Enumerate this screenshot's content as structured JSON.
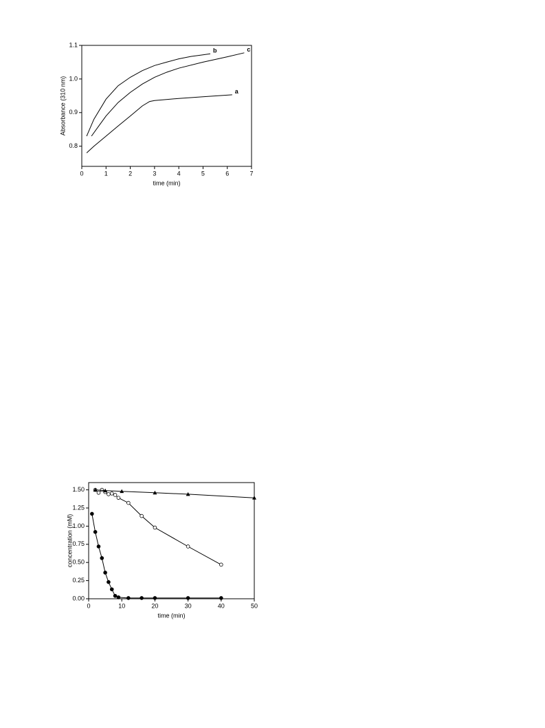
{
  "chart_data": [
    {
      "type": "line",
      "ylabel": "Absorbance (310 nm)",
      "xlabel": "time (min)",
      "xlim": [
        0,
        7
      ],
      "xticks": [
        0,
        1,
        2,
        3,
        4,
        5,
        6,
        7
      ],
      "ylim": [
        0.74,
        1.1
      ],
      "yticks": [
        0.8,
        0.9,
        {
          "value": 1.0,
          "label": "1.0"
        },
        1.1
      ],
      "series": [
        {
          "name": "a",
          "color": "#000000",
          "x": [
            0.2,
            0.5,
            1,
            1.5,
            2,
            2.5,
            2.8,
            3,
            4,
            5,
            6.2
          ],
          "values": [
            0.78,
            0.8,
            0.83,
            0.86,
            0.89,
            0.92,
            0.933,
            0.936,
            0.942,
            0.947,
            0.953
          ]
        },
        {
          "name": "b",
          "color": "#000000",
          "x": [
            0.2,
            0.5,
            1,
            1.5,
            2,
            2.5,
            3,
            3.5,
            4,
            4.5,
            5,
            5.3
          ],
          "values": [
            0.83,
            0.88,
            0.94,
            0.98,
            1.005,
            1.025,
            1.04,
            1.05,
            1.06,
            1.067,
            1.072,
            1.075
          ]
        },
        {
          "name": "c",
          "color": "#000000",
          "x": [
            0.4,
            0.7,
            1,
            1.5,
            2,
            2.5,
            3,
            3.5,
            4,
            5,
            6,
            6.7
          ],
          "values": [
            0.83,
            0.86,
            0.89,
            0.93,
            0.96,
            0.985,
            1.005,
            1.02,
            1.032,
            1.05,
            1.066,
            1.078
          ]
        }
      ]
    },
    {
      "type": "line",
      "ylabel": "concentration (mM)",
      "xlabel": "time (min)",
      "xlim": [
        0,
        50
      ],
      "xticks": [
        0,
        10,
        20,
        30,
        40,
        50
      ],
      "ylim": [
        0,
        1.6
      ],
      "yticks": [
        {
          "value": 0,
          "label": "0.00"
        },
        {
          "value": 0.25,
          "label": "0.25"
        },
        {
          "value": 0.5,
          "label": "0.50"
        },
        {
          "value": 0.75,
          "label": "0.75"
        },
        {
          "value": 1.0,
          "label": "1.00"
        },
        {
          "value": 1.25,
          "label": "1.25"
        },
        {
          "value": 1.5,
          "label": "1.50"
        }
      ],
      "series": [
        {
          "marker": "filled-circle",
          "color": "#000000",
          "x": [
            1,
            2,
            3,
            4,
            5,
            6,
            7,
            8,
            9,
            12,
            16,
            20,
            30,
            40
          ],
          "values": [
            1.17,
            0.92,
            0.72,
            0.56,
            0.36,
            0.23,
            0.13,
            0.04,
            0.02,
            0.01,
            0.01,
            0.01,
            0.01,
            0.01
          ]
        },
        {
          "marker": "open-circle",
          "color": "#000000",
          "x": [
            2,
            3,
            4,
            5,
            6,
            7,
            8,
            9,
            12,
            16,
            20,
            30,
            40
          ],
          "values": [
            1.5,
            1.46,
            1.5,
            1.47,
            1.44,
            1.45,
            1.43,
            1.39,
            1.32,
            1.14,
            0.98,
            0.72,
            0.47
          ]
        },
        {
          "marker": "triangle",
          "color": "#000000",
          "x": [
            2,
            5,
            10,
            20,
            30,
            50
          ],
          "values": [
            1.5,
            1.49,
            1.48,
            1.46,
            1.44,
            1.39
          ]
        }
      ]
    }
  ]
}
